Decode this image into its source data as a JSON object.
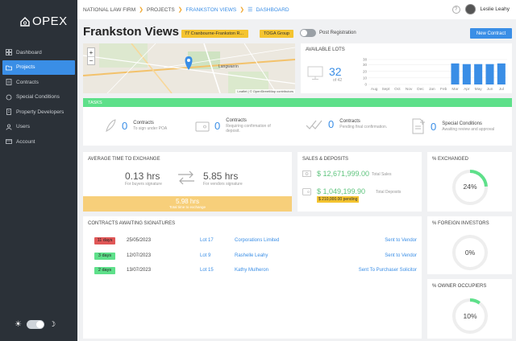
{
  "app": {
    "name": "OPEX"
  },
  "sidebar": {
    "items": [
      {
        "label": "Dashboard",
        "icon": "grid-icon"
      },
      {
        "label": "Projects",
        "icon": "folder-icon",
        "active": true
      },
      {
        "label": "Contracts",
        "icon": "file-icon"
      },
      {
        "label": "Special Conditions",
        "icon": "sparkle-icon"
      },
      {
        "label": "Property Developers",
        "icon": "building-icon"
      },
      {
        "label": "Users",
        "icon": "users-icon"
      },
      {
        "label": "Account",
        "icon": "account-icon"
      }
    ]
  },
  "breadcrumb": {
    "firm": "NATIONAL LAW FIRM",
    "projects": "PROJECTS",
    "project": "FRANKSTON VIEWS",
    "dashboard": "DASHBOARD"
  },
  "user": {
    "name": "Leslie Leahy",
    "help": "?"
  },
  "header": {
    "title": "Frankston Views",
    "address_chip": "77 Cranbourne-Frankston R...",
    "group_chip": "TOGA Group",
    "post_registration_label": "Post Registration",
    "new_contract_label": "New Contract"
  },
  "map": {
    "zoom_in": "+",
    "zoom_out": "−",
    "place_label": "Langwarrin",
    "attribution": "Leaflet | © OpenStreetMap contributors"
  },
  "available_lots": {
    "title": "AVAILABLE LOTS",
    "count": "32",
    "of_total": "of 42",
    "chart_data": {
      "type": "bar",
      "categories": [
        "Aug",
        "Sept",
        "Oct",
        "Nov",
        "Dec",
        "Jan",
        "Feb",
        "Mar",
        "Apr",
        "May",
        "Jun",
        "Jul"
      ],
      "values": [
        0,
        0,
        0,
        0,
        0,
        0,
        0,
        32,
        31,
        31,
        31,
        32
      ],
      "ylim": [
        0,
        38
      ],
      "yticks": [
        "38",
        "30",
        "20",
        "10",
        "0"
      ],
      "color": "#3a8ee6"
    }
  },
  "tasks": {
    "label": "TASKS",
    "items": [
      {
        "count": "0",
        "title": "Contracts",
        "sub": "To sign under POA",
        "icon": "feather-icon"
      },
      {
        "count": "0",
        "title": "Contracts",
        "sub": "Requiring confirmation of",
        "sub2": "deposit.",
        "icon": "wallet-icon"
      },
      {
        "count": "0",
        "title": "Contracts",
        "sub": "Pending final confirmation.",
        "icon": "double-check-icon"
      },
      {
        "count": "0",
        "title": "Special Conditions",
        "sub": "Awaiting review and approval",
        "icon": "document-add-icon"
      }
    ]
  },
  "avg_time": {
    "title": "AVERAGE TIME TO EXCHANGE",
    "buyers_value": "0.13 hrs",
    "buyers_label": "For buyers signature",
    "vendors_value": "5.85 hrs",
    "vendors_label": "For vendors signature",
    "total_value": "5.98 hrs",
    "total_label": "Total time to exchange"
  },
  "sales": {
    "title": "SALES & DEPOSITS",
    "total_sales": "$ 12,671,999.00",
    "total_sales_label": "Total Sales",
    "total_deposits": "$ 1,049,199.90",
    "total_deposits_label": "Total Deposits",
    "pending": "$ 210,000.00 pending"
  },
  "exchanged": {
    "title": "% EXCHANGED",
    "value": "24%",
    "fraction": 0.24
  },
  "foreign": {
    "title": "% FOREIGN INVESTORS",
    "value": "0%",
    "fraction": 0
  },
  "owner": {
    "title": "% OWNER OCCUPIERS",
    "value": "10%",
    "fraction": 0.1
  },
  "contracts": {
    "title": "CONTRACTS AWAITING SIGNATURES",
    "rows": [
      {
        "badge": "11 days",
        "badge_color": "#e05757",
        "date": "25/05/2023",
        "lot": "Lot 17",
        "party": "Corporations Limited",
        "status": "Sent to Vendor"
      },
      {
        "badge": "3 days",
        "badge_color": "#5ee08a",
        "date": "12/07/2023",
        "lot": "Lot 9",
        "party": "Rashelle Leahy",
        "status": "Sent to Vendor"
      },
      {
        "badge": "2 days",
        "badge_color": "#5ee08a",
        "date": "13/07/2023",
        "lot": "Lot 15",
        "party": "Kathy Mulheron",
        "status": "Sent To Purchaser Solicitor"
      }
    ]
  },
  "colors": {
    "accent": "#3a8ee6",
    "sidebar": "#2b3138",
    "success": "#5ee08a",
    "warning": "#f4c430",
    "danger": "#e05757"
  }
}
